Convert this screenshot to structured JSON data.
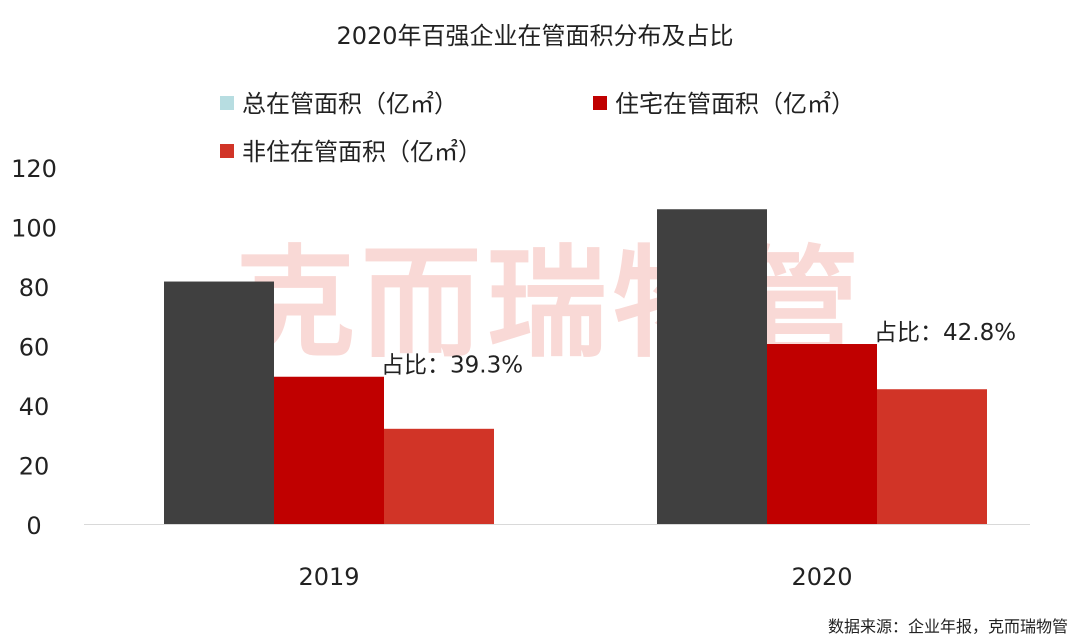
{
  "chart_data": {
    "type": "bar",
    "title": "2020年百强企业在管面积分布及占比",
    "categories": [
      "2019",
      "2020"
    ],
    "series": [
      {
        "name": "总在管面积（亿㎡）",
        "values": [
          81.5,
          105.8
        ],
        "color": "#404040"
      },
      {
        "name": "住宅在管面积（亿㎡）",
        "values": [
          49.5,
          60.5
        ],
        "color": "#c00000"
      },
      {
        "name": "非住在管面积（亿㎡）",
        "values": [
          32.0,
          45.3
        ],
        "color": "#d13427"
      }
    ],
    "legend_markers": [
      {
        "color": "#b7dde1"
      },
      {
        "color": "#c00000"
      },
      {
        "color": "#d13427"
      }
    ],
    "yticks": [
      "0",
      "20",
      "40",
      "60",
      "80",
      "100",
      "120"
    ],
    "ylim": [
      0,
      120
    ],
    "grid": false,
    "legend_position": "top",
    "annotations": [
      {
        "text": "占比：39.3%",
        "category_index": 0
      },
      {
        "text": "占比：42.8%",
        "category_index": 1
      }
    ],
    "watermark": "克而瑞物管",
    "source": "数据来源：企业年报，克而瑞物管"
  }
}
